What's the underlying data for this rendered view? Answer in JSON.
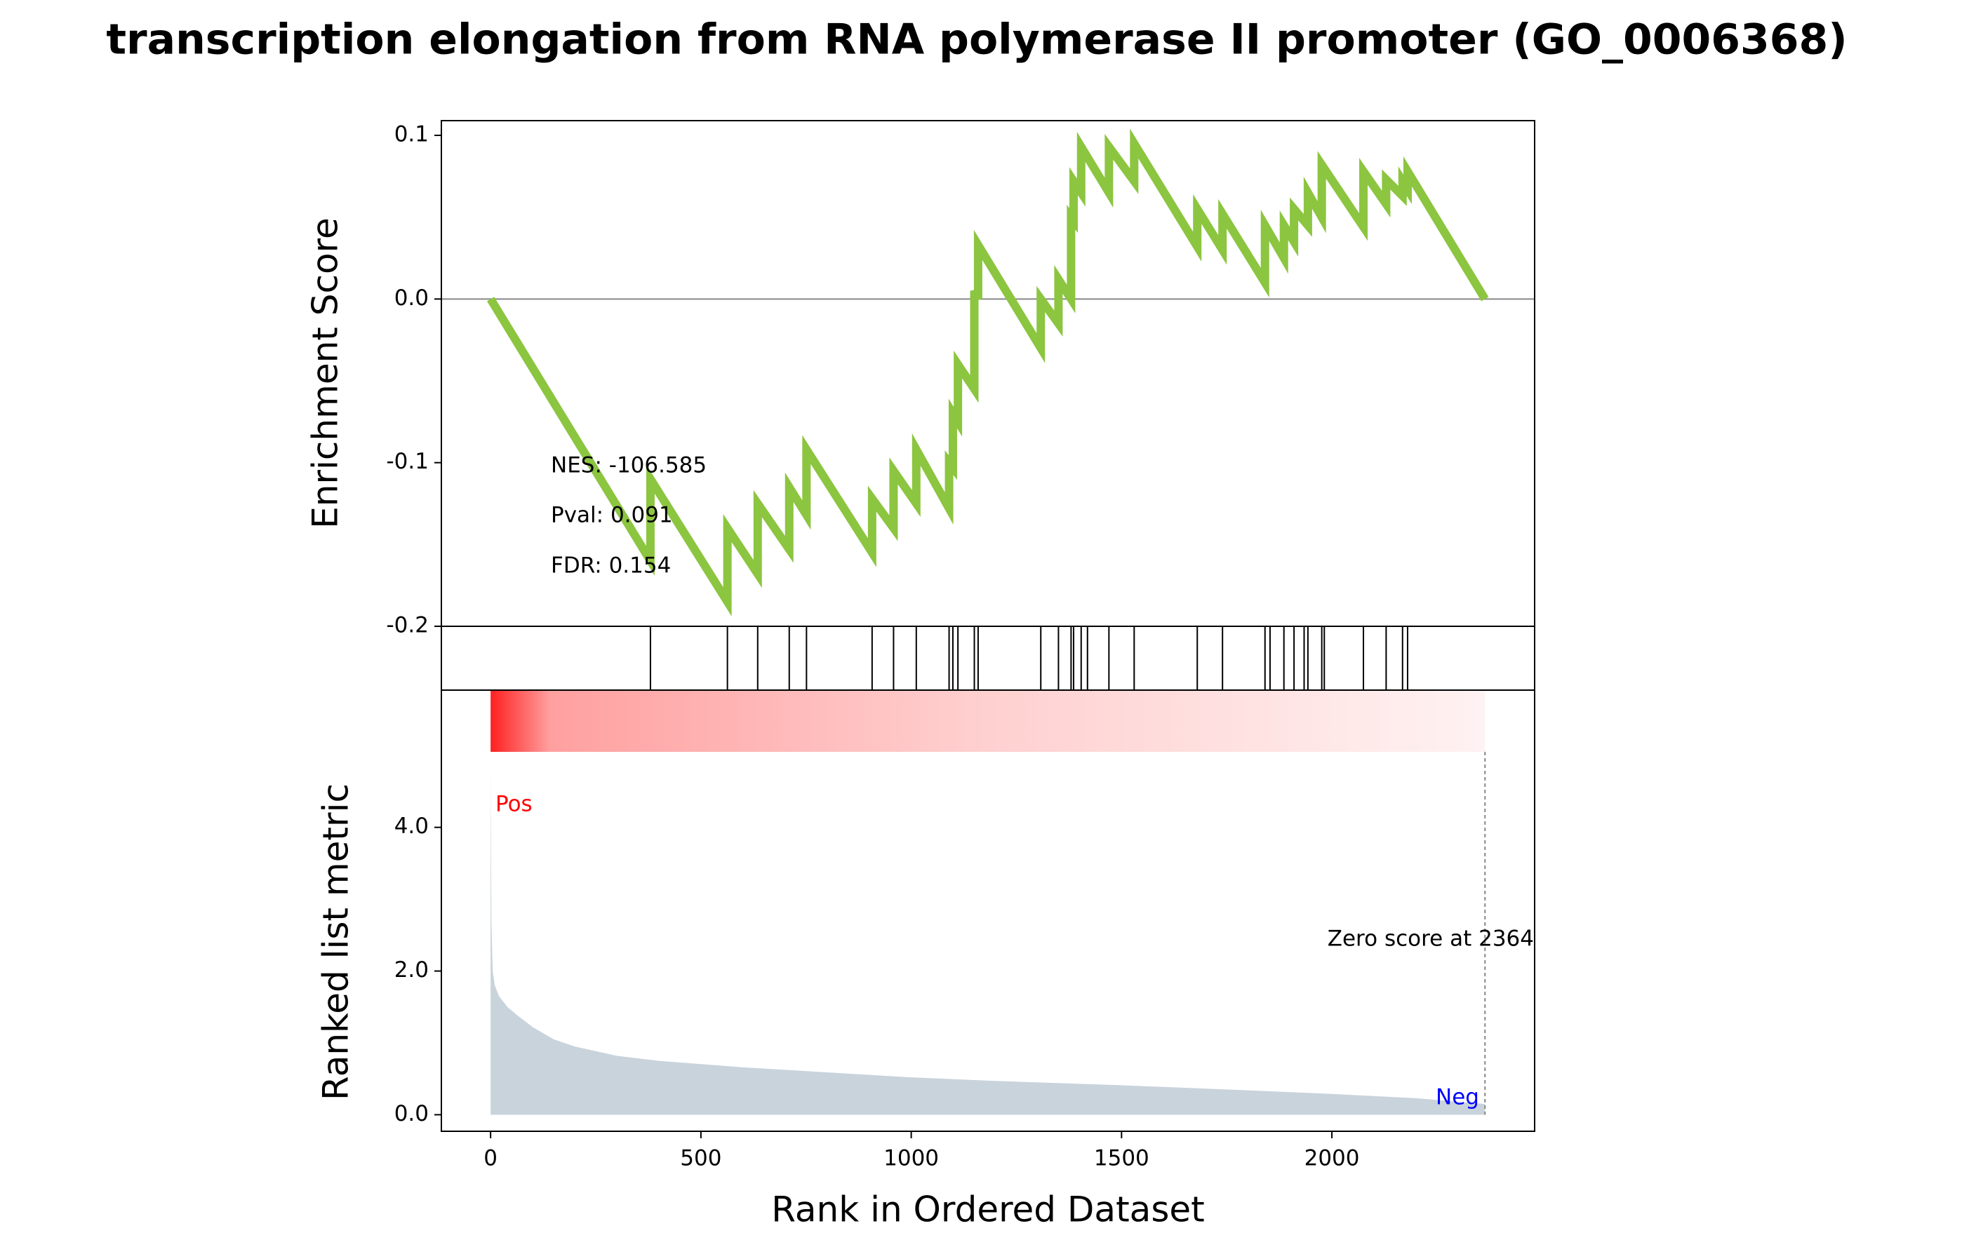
{
  "chart_data": [
    {
      "type": "line",
      "title": "transcription elongation from RNA polymerase II promoter (GO_0006368)",
      "ylabel": "Enrichment Score",
      "color": "#8cc540",
      "x": [
        0,
        380,
        380,
        563,
        563,
        635,
        635,
        710,
        710,
        751,
        751,
        907,
        907,
        958,
        958,
        1012,
        1012,
        1090,
        1090,
        1099,
        1099,
        1111,
        1111,
        1150,
        1150,
        1159,
        1159,
        1308,
        1308,
        1350,
        1350,
        1380,
        1380,
        1386,
        1386,
        1404,
        1404,
        1470,
        1470,
        1530,
        1530,
        1680,
        1680,
        1740,
        1740,
        1841,
        1841,
        1886,
        1886,
        1910,
        1910,
        1943,
        1943,
        1976,
        1976,
        2075,
        2075,
        2129,
        2129,
        2168,
        2168,
        2180,
        2180,
        2364
      ],
      "values": [
        0,
        -0.16,
        -0.11,
        -0.185,
        -0.14,
        -0.168,
        -0.125,
        -0.153,
        -0.115,
        -0.132,
        -0.092,
        -0.155,
        -0.122,
        -0.14,
        -0.105,
        -0.125,
        -0.092,
        -0.128,
        -0.1,
        -0.103,
        -0.07,
        -0.075,
        -0.04,
        -0.055,
        0.005,
        0,
        0.033,
        -0.03,
        0,
        -0.015,
        0.012,
        0,
        0.05,
        0.048,
        0.072,
        0.065,
        0.093,
        0.065,
        0.093,
        0.072,
        0.095,
        0.032,
        0.055,
        0.03,
        0.052,
        0.01,
        0.045,
        0.025,
        0.045,
        0.035,
        0.055,
        0.045,
        0.065,
        0.05,
        0.082,
        0.044,
        0.078,
        0.058,
        0.073,
        0.063,
        0.072,
        0.067,
        0.078,
        0
      ],
      "xlim": [
        -117,
        2482
      ],
      "ylim": [
        -0.2,
        0.109
      ],
      "yticks": [
        {
          "value": -0.2,
          "label": "-0.2"
        },
        -0.1,
        {
          "value": 0,
          "label": "0.0"
        },
        0.1
      ],
      "annotations": [
        "NES: -106.585",
        "Pval: 0.091",
        "FDR: 0.154"
      ]
    },
    {
      "type": "hits",
      "color": "#000000",
      "x": [
        380,
        563,
        635,
        710,
        751,
        907,
        958,
        1012,
        1090,
        1099,
        1111,
        1150,
        1159,
        1308,
        1350,
        1380,
        1386,
        1404,
        1419,
        1470,
        1530,
        1680,
        1740,
        1841,
        1853,
        1886,
        1910,
        1934,
        1943,
        1976,
        1982,
        2075,
        2129,
        2168,
        2180
      ],
      "xlim": [
        -117,
        2482
      ]
    },
    {
      "type": "area",
      "ylabel": "Ranked list metric",
      "xlabel": "Rank in Ordered Dataset",
      "color": "#c9d3dc",
      "x": [
        0,
        2,
        5,
        10,
        20,
        40,
        60,
        100,
        150,
        200,
        300,
        400,
        600,
        800,
        1000,
        1200,
        1500,
        1800,
        2000,
        2200,
        2364
      ],
      "values": [
        4.8,
        2.7,
        2.0,
        1.8,
        1.65,
        1.5,
        1.4,
        1.22,
        1.05,
        0.95,
        0.82,
        0.75,
        0.66,
        0.59,
        0.52,
        0.47,
        0.41,
        0.34,
        0.29,
        0.23,
        0.15
      ],
      "xlim": [
        -117,
        2482
      ],
      "ylim": [
        -0.23,
        5.91
      ],
      "xticks": [
        0,
        500,
        1000,
        1500,
        2000
      ],
      "yticks": [
        {
          "value": 0,
          "label": "0.0"
        },
        {
          "value": 2,
          "label": "2.0"
        },
        {
          "value": 4,
          "label": "4.0"
        }
      ],
      "zero_score_at": 2364,
      "annotations": [
        "Pos",
        "Neg",
        "Zero score at 2364"
      ]
    }
  ]
}
